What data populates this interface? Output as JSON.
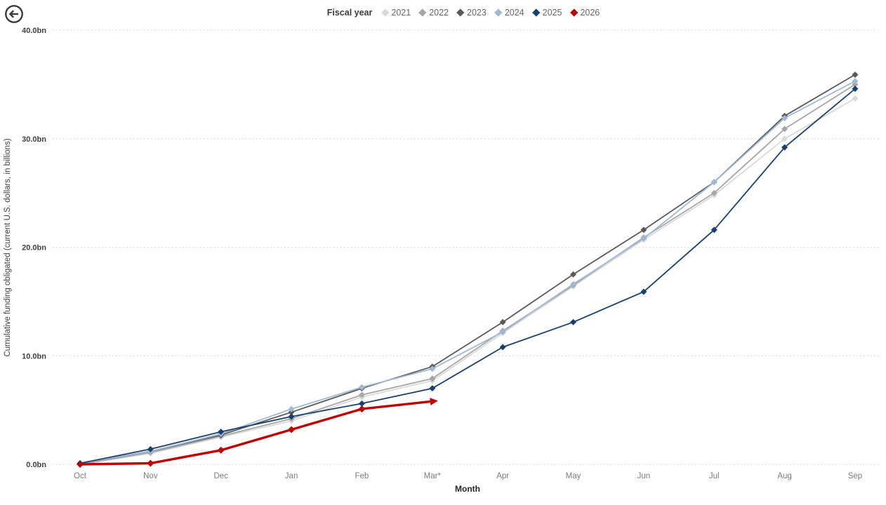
{
  "back_button": {
    "icon": "arrow-left-circle",
    "color": "#3b3b3b"
  },
  "legend": {
    "title": "Fiscal year",
    "items": [
      {
        "label": "2021",
        "color": "#d9d9d9"
      },
      {
        "label": "2022",
        "color": "#a6a6a6"
      },
      {
        "label": "2023",
        "color": "#595959"
      },
      {
        "label": "2024",
        "color": "#a1b8d4"
      },
      {
        "label": "2025",
        "color": "#17406e"
      },
      {
        "label": "2026",
        "color": "#c00000"
      }
    ]
  },
  "chart_data": {
    "type": "line",
    "title": "",
    "xlabel": "Month",
    "ylabel": "Cumulative funding obligated (current U.S. dollars, in billions)",
    "categories": [
      "Oct",
      "Nov",
      "Dec",
      "Jan",
      "Feb",
      "Mar*",
      "Apr",
      "May",
      "Jun",
      "Jul",
      "Aug",
      "Sep"
    ],
    "yticks": [
      "0.0bn",
      "10.0bn",
      "20.0bn",
      "30.0bn",
      "40.0bn"
    ],
    "ylim": [
      0,
      40
    ],
    "grid": "horizontal-dotted",
    "legend_position": "top-center",
    "series": [
      {
        "name": "2021",
        "color": "#d9d9d9",
        "values": [
          0.0,
          1.0,
          2.5,
          4.0,
          6.2,
          7.7,
          12.1,
          16.4,
          20.7,
          24.8,
          30.0,
          33.7
        ]
      },
      {
        "name": "2022",
        "color": "#a6a6a6",
        "values": [
          0.0,
          1.1,
          2.6,
          4.2,
          6.4,
          7.9,
          12.3,
          16.5,
          20.9,
          25.0,
          30.9,
          35.0
        ]
      },
      {
        "name": "2023",
        "color": "#595959",
        "values": [
          0.1,
          1.2,
          2.7,
          4.8,
          7.0,
          9.0,
          13.1,
          17.5,
          21.6,
          26.0,
          32.1,
          35.9
        ]
      },
      {
        "name": "2024",
        "color": "#a1b8d4",
        "values": [
          0.1,
          1.2,
          2.8,
          5.1,
          7.1,
          8.8,
          12.2,
          16.6,
          20.8,
          26.0,
          31.9,
          35.3
        ]
      },
      {
        "name": "2025",
        "color": "#17406e",
        "values": [
          0.1,
          1.4,
          3.0,
          4.4,
          5.6,
          7.0,
          10.8,
          13.1,
          15.9,
          21.6,
          29.2,
          34.6
        ]
      },
      {
        "name": "2026",
        "color": "#c00000",
        "line_width": 3.4,
        "end_arrow": true,
        "values": [
          0.0,
          0.1,
          1.3,
          3.2,
          5.1,
          5.8
        ]
      }
    ]
  }
}
